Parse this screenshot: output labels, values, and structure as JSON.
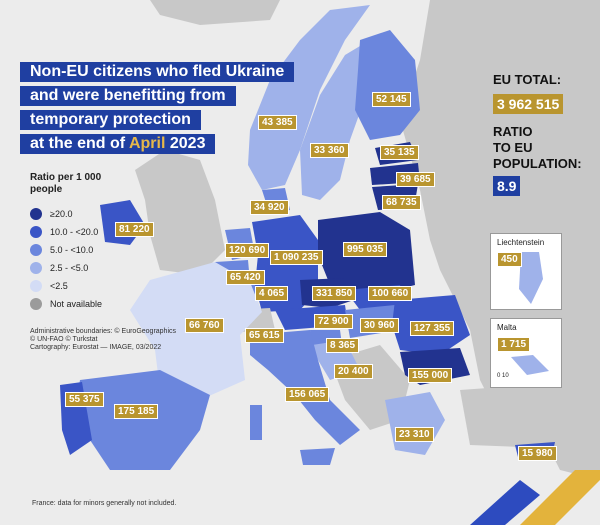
{
  "title": {
    "line1": "Non-EU citizens who fled Ukraine",
    "line2": "and were benefitting from",
    "line3": "temporary protection",
    "line4_prefix": "at the end of ",
    "line4_highlight": "April",
    "line4_suffix": " 2023"
  },
  "summary": {
    "eu_total_label": "EU TOTAL:",
    "eu_total_value": "3 962 515",
    "ratio_label_1": "RATIO",
    "ratio_label_2": "TO EU",
    "ratio_label_3": "POPULATION:",
    "ratio_value": "8.9"
  },
  "legend": {
    "title_1": "Ratio per 1 000",
    "title_2": "people",
    "items": [
      {
        "label": "≥20.0",
        "color": "#22338f"
      },
      {
        "label": "10.0 - <20.0",
        "color": "#3a55c6"
      },
      {
        "label": "5.0 - <10.0",
        "color": "#6b86dd"
      },
      {
        "label": "2.5 - <5.0",
        "color": "#9fb2ea"
      },
      {
        "label": "<2.5",
        "color": "#d3dcf5"
      },
      {
        "label": "Not available",
        "color": "#9b9b9b"
      }
    ]
  },
  "credits": {
    "line1": "Administrative boundaries: © EuroGeographics",
    "line2": "© UN-FAO © Turkstat",
    "line3": "Cartography: Eurostat — IMAGE, 03/2022"
  },
  "footnote": "France: data for minors generally not included.",
  "insets": {
    "liechtenstein": {
      "name": "Liechtenstein",
      "value": "450"
    },
    "malta": {
      "name": "Malta",
      "value": "1 715",
      "scale": "0    10"
    }
  },
  "countries": {
    "finland": "52 145",
    "norway": "43 385",
    "sweden": "33 360",
    "estonia": "35 135",
    "latvia": "39 685",
    "lithuania": "68 735",
    "denmark": "34 920",
    "ireland": "81 220",
    "netherlands": "120 690",
    "germany": "1 090 235",
    "poland": "995 035",
    "belgium": "65 420",
    "luxembourg": "4 065",
    "czechia": "331 850",
    "slovakia": "100 660",
    "austria": "72 900",
    "hungary": "30 960",
    "romania": "127 355",
    "france": "66 760",
    "switzerland": "65 615",
    "slovenia": "8 365",
    "croatia": "20 400",
    "bulgaria": "155 000",
    "portugal": "55 375",
    "spain": "175 185",
    "italy": "156 065",
    "greece": "23 310",
    "cyprus": "15 980"
  },
  "colors": {
    "sea": "#ececec",
    "non_eu": "#c8c8c8",
    "label_bg": "#b9952f",
    "title_bg": "#1f3fa1"
  }
}
